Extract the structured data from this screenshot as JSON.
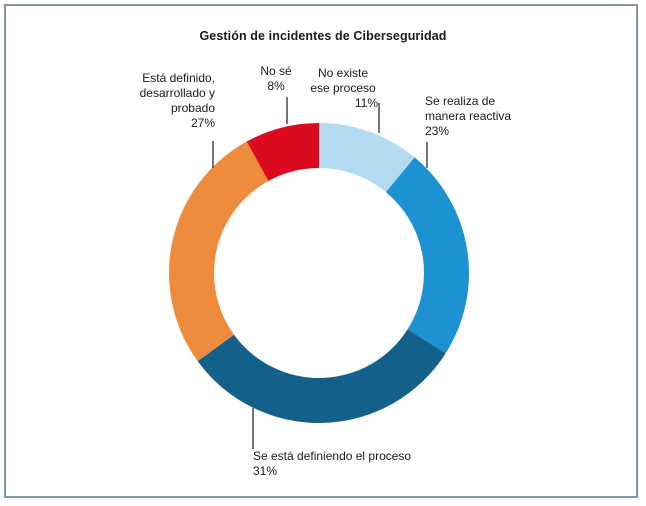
{
  "frame": {
    "border_color": "#7e9aa6",
    "background_color": "#ffffff"
  },
  "chart_data": {
    "type": "pie",
    "variant": "donut",
    "title": "Gestión de incidentes de Ciberseguridad",
    "unit": "%",
    "start_angle_deg": 0,
    "direction": "clockwise",
    "inner_radius_ratio": 0.7,
    "legend": "none",
    "segments": [
      {
        "label": "No existe ese proceso",
        "value": 11,
        "color": "#b3daf0"
      },
      {
        "label": "Se realiza de manera reactiva",
        "value": 23,
        "color": "#1c92d2"
      },
      {
        "label": "Se está definiendo el proceso",
        "value": 31,
        "color": "#13608a"
      },
      {
        "label": "Está definido, desarrollado y probado",
        "value": 27,
        "color": "#ee8b3d"
      },
      {
        "label": "No sé",
        "value": 8,
        "color": "#dc0a1e"
      }
    ]
  },
  "callouts": {
    "esta_definido": {
      "lines": [
        "Está definido,",
        "desarrollado y",
        "probado"
      ],
      "value": "27%"
    },
    "no_se": {
      "lines": [
        "No sé"
      ],
      "value": "8%"
    },
    "no_existe": {
      "lines": [
        "No existe",
        "ese proceso"
      ],
      "value": "11%"
    },
    "se_realiza": {
      "lines": [
        "Se realiza de",
        "manera reactiva"
      ],
      "value": "23%"
    },
    "se_esta": {
      "lines": [
        "Se está definiendo el proceso"
      ],
      "value": "31%"
    }
  }
}
